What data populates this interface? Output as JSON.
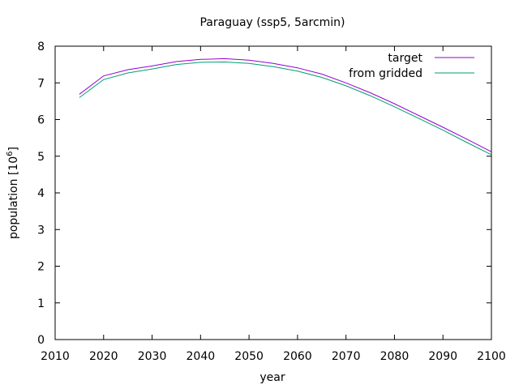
{
  "chart_data": {
    "type": "line",
    "title": "Paraguay (ssp5, 5arcmin)",
    "xlabel": "year",
    "ylabel": "population [10",
    "ylabel_sup": "6",
    "ylabel_close": "]",
    "xlim": [
      2010,
      2100
    ],
    "ylim": [
      0,
      8
    ],
    "xticks": [
      2010,
      2020,
      2030,
      2040,
      2050,
      2060,
      2070,
      2080,
      2090,
      2100
    ],
    "yticks": [
      0,
      1,
      2,
      3,
      4,
      5,
      6,
      7,
      8
    ],
    "grid": false,
    "legend_position": "top-right",
    "series": [
      {
        "name": "target",
        "color": "#9400d3",
        "x": [
          2015,
          2020,
          2025,
          2030,
          2035,
          2040,
          2045,
          2050,
          2055,
          2060,
          2065,
          2070,
          2075,
          2080,
          2085,
          2090,
          2095,
          2100
        ],
        "y": [
          6.69,
          7.19,
          7.36,
          7.46,
          7.58,
          7.64,
          7.66,
          7.62,
          7.53,
          7.41,
          7.24,
          7.0,
          6.73,
          6.43,
          6.11,
          5.79,
          5.46,
          5.12
        ]
      },
      {
        "name": "from gridded",
        "color": "#009e73",
        "x": [
          2015,
          2020,
          2025,
          2030,
          2035,
          2040,
          2045,
          2050,
          2055,
          2060,
          2065,
          2070,
          2075,
          2080,
          2085,
          2090,
          2095,
          2100
        ],
        "y": [
          6.6,
          7.09,
          7.27,
          7.38,
          7.5,
          7.56,
          7.57,
          7.53,
          7.44,
          7.32,
          7.15,
          6.92,
          6.65,
          6.35,
          6.03,
          5.71,
          5.37,
          5.04
        ]
      }
    ]
  }
}
